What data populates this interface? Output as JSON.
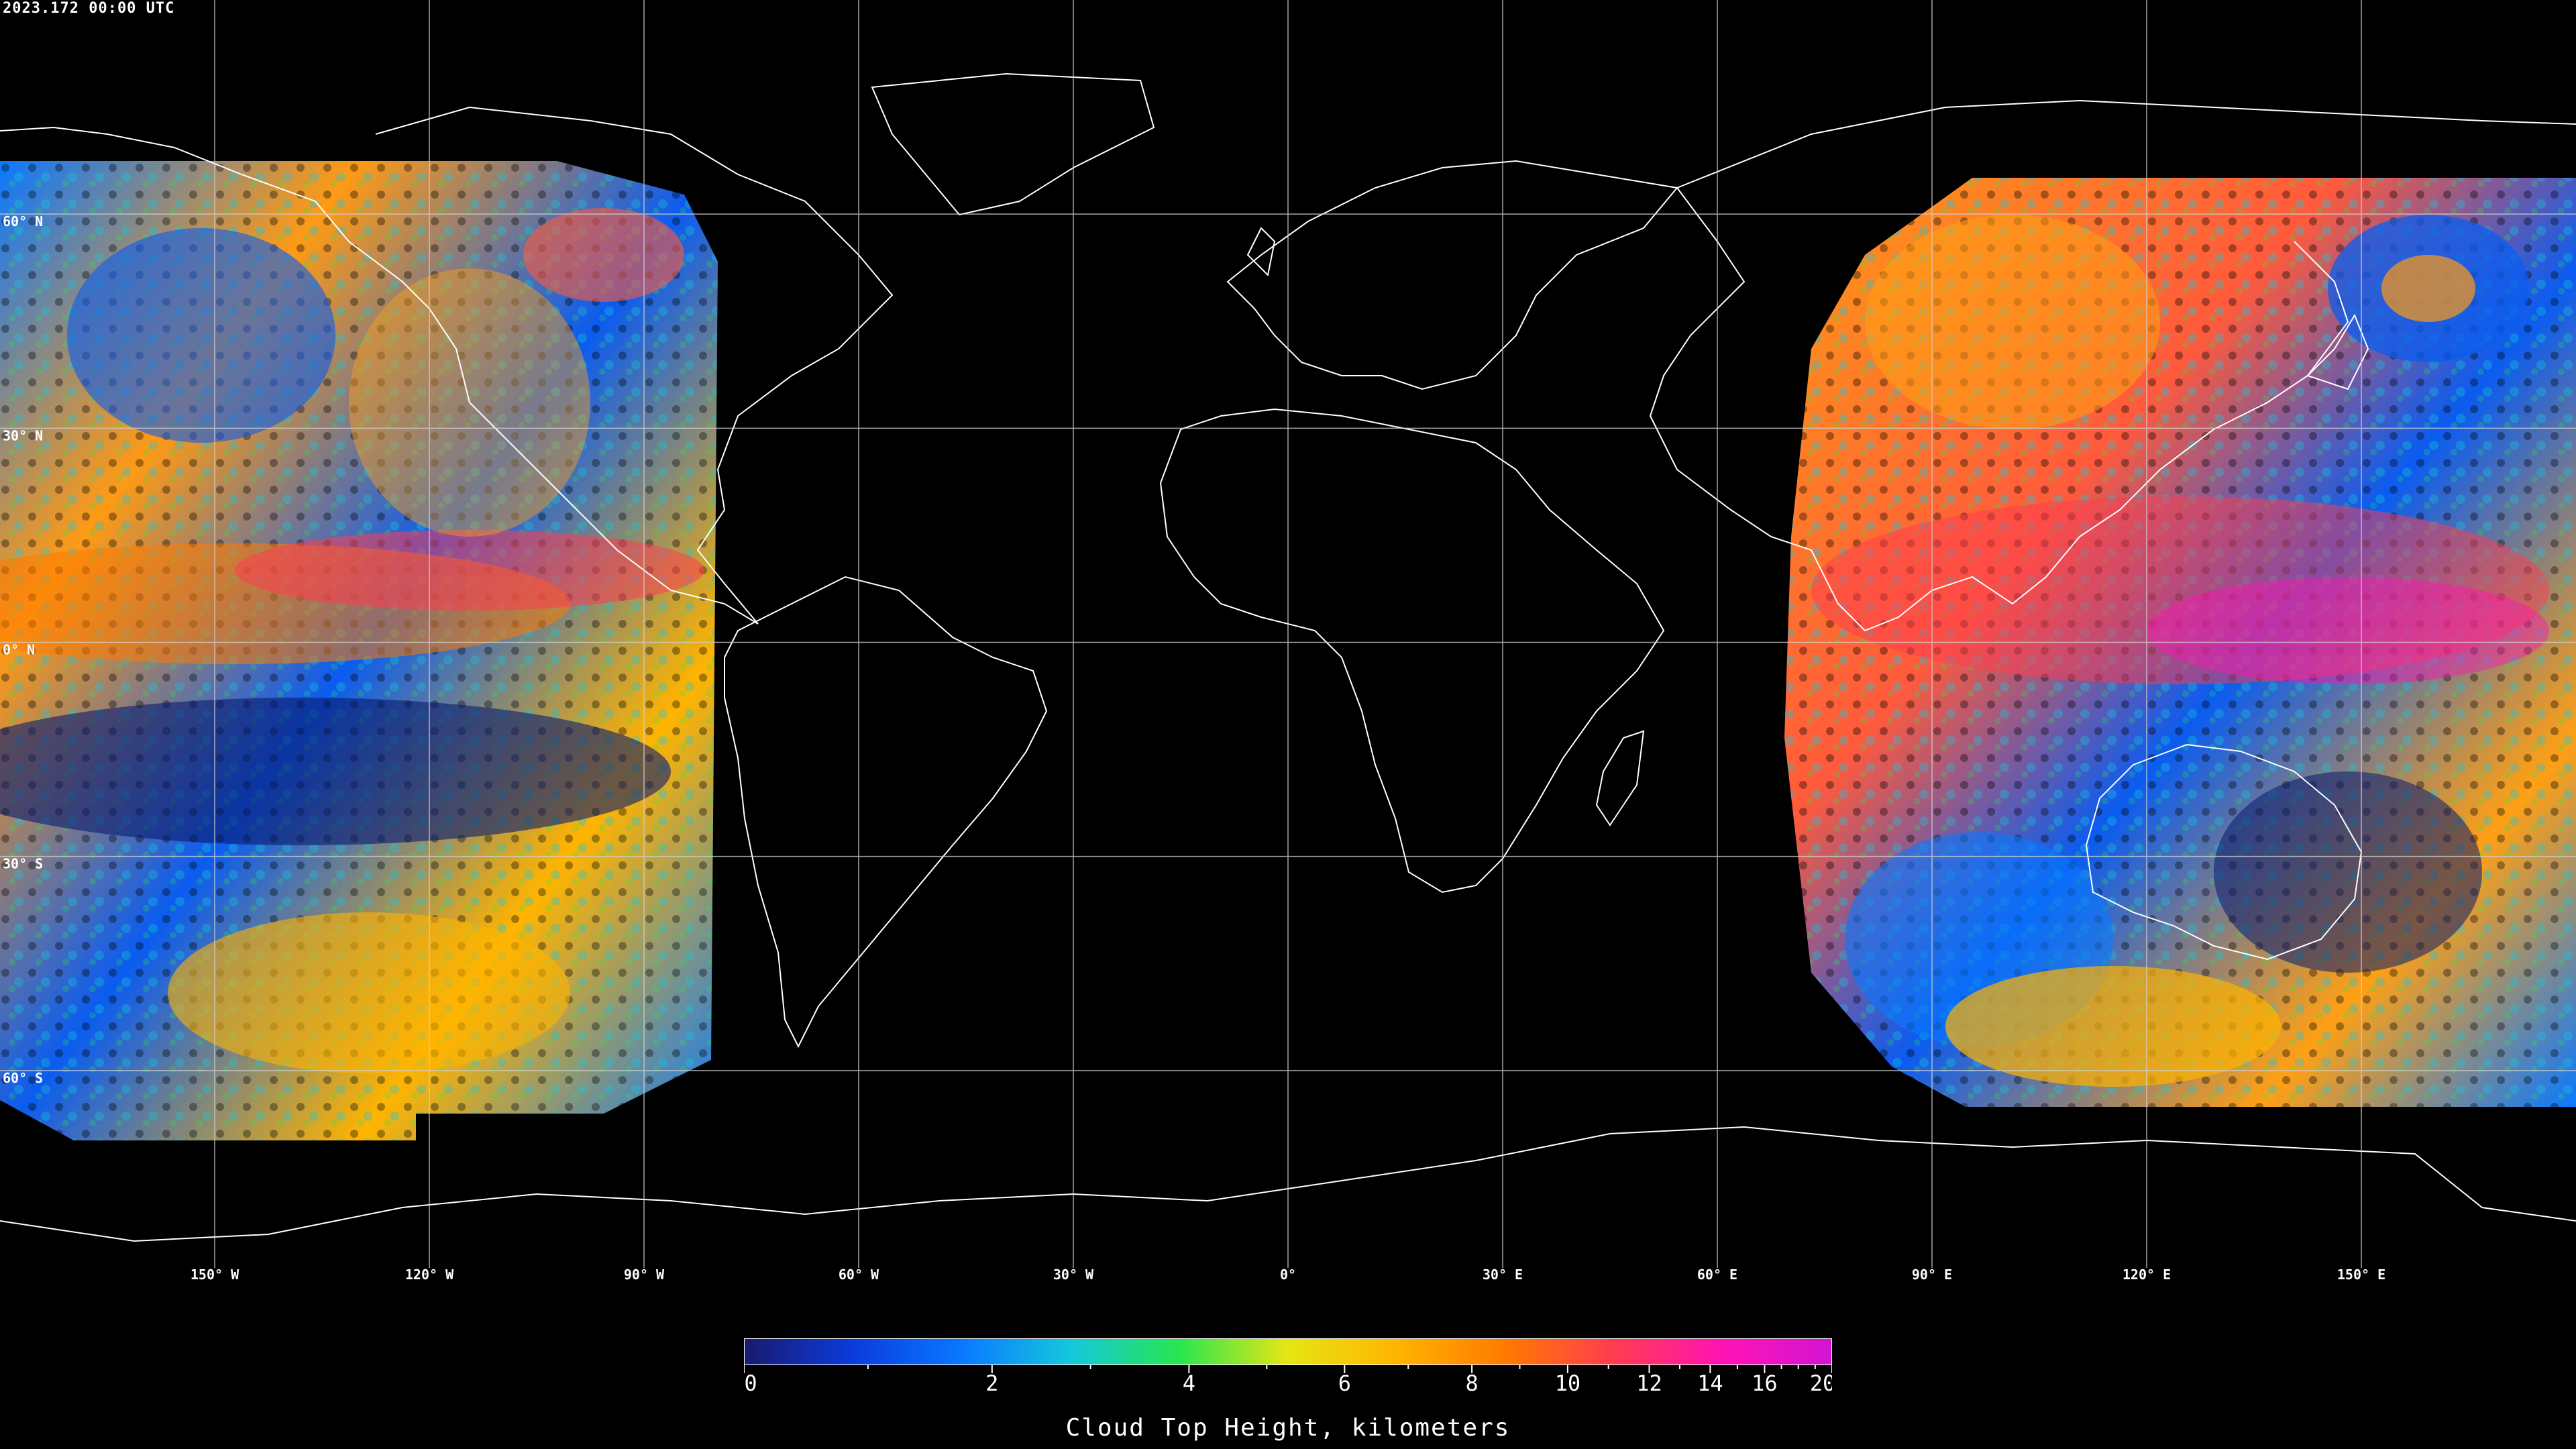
{
  "timestamp": "2023.172 00:00 UTC",
  "map": {
    "projection": "equirectangular",
    "grid_color": "#ffffff",
    "coastline_color": "#ffffff",
    "background_color": "#000000",
    "lon_labels": [
      "150° W",
      "120° W",
      "90° W",
      "60° W",
      "30° W",
      "0°",
      "30° E",
      "60° E",
      "90° E",
      "120° E",
      "150° E"
    ],
    "lat_labels": [
      "60° N",
      "30° N",
      "0° N",
      "30° S",
      "60° S"
    ],
    "data_regions": [
      "west-pacific-americas-swath",
      "asia-pacific-swath"
    ]
  },
  "colorbar": {
    "title": "Cloud Top Height, kilometers",
    "tick_labels": [
      "0",
      "2",
      "4",
      "6",
      "8",
      "10",
      "12",
      "14",
      "16",
      "20"
    ],
    "tick_values": [
      0,
      2,
      4,
      6,
      8,
      10,
      12,
      14,
      16,
      20
    ],
    "colors": [
      "#1a1a6e",
      "#0a3cdc",
      "#0a78ff",
      "#14c8dc",
      "#28e650",
      "#e6e614",
      "#ffb400",
      "#ff7a00",
      "#ff3c50",
      "#ff14b4",
      "#d214d2"
    ]
  }
}
